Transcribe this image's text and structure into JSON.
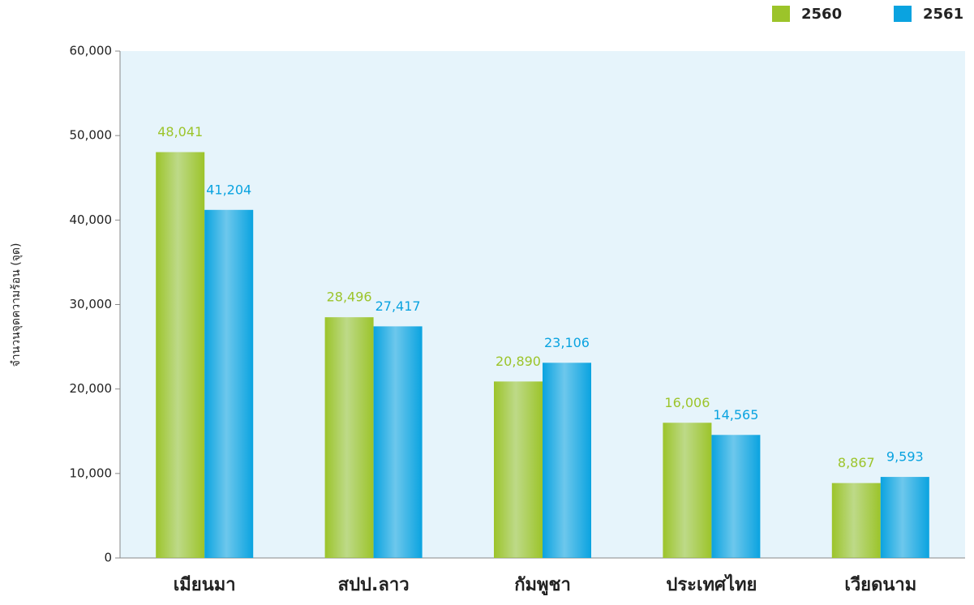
{
  "chart_data": {
    "type": "bar",
    "y_label": "จำนวนจุดความร้อน (จุด)",
    "categories": [
      "เมียนมา",
      "สปป.ลาว",
      "กัมพูชา",
      "ประเทศไทย",
      "เวียดนาม"
    ],
    "series": [
      {
        "name": "2560",
        "color": "#9cc42a",
        "values": [
          48041,
          28496,
          20890,
          16006,
          8867
        ],
        "value_labels": [
          "48,041",
          "28,496",
          "20,890",
          "16,006",
          "8,867"
        ]
      },
      {
        "name": "2561",
        "color": "#0aa3e0",
        "values": [
          41204,
          27417,
          23106,
          14565,
          9593
        ],
        "value_labels": [
          "41,204",
          "27,417",
          "23,106",
          "14,565",
          "9,593"
        ]
      }
    ],
    "ylim": [
      0,
      60000
    ],
    "yticks": [
      0,
      {
        "value": 10000,
        "label": "10,000"
      },
      {
        "value": 20000,
        "label": "20,000"
      },
      {
        "value": 30000,
        "label": "30,000"
      },
      {
        "value": 40000,
        "label": "40,000"
      },
      {
        "value": 50000,
        "label": "50,000"
      },
      {
        "value": 60000,
        "label": "60,000"
      }
    ],
    "plot_background": "#e6f4fb",
    "legend": "top-right"
  }
}
